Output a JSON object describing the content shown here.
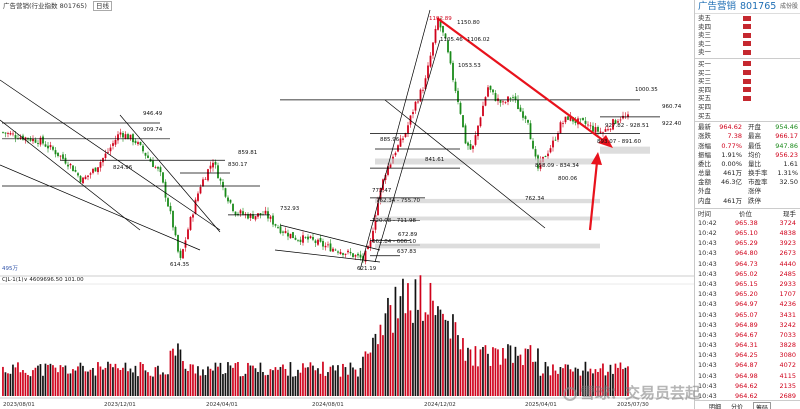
{
  "topbar": {
    "name": "广告营销(行业指数 801765)",
    "period": "日线"
  },
  "chart_labels": {
    "p1192": "1192.89",
    "p1150": "1150.80",
    "p1105": "1105.46",
    "p1106": "1106.02",
    "p1053": "1053.53",
    "p1000": "1000.35",
    "p960": "960.74",
    "p946": "946.49",
    "p922": "922.40",
    "p927": "927.82 - 928.51",
    "p909": "909.74",
    "p893": "893.07 - 891.60",
    "p885": "885.96",
    "p859": "859.81",
    "p858": "858.09 - 834.34",
    "p841": "841.61",
    "p830": "830.17",
    "p824": "824.96",
    "p800": "800.06",
    "p772": "772.47",
    "p762a": "762.34 - 755.70",
    "p762b": "762.34",
    "p732": "732.93",
    "p720": "720.08 - 711.98",
    "p672": "672.89",
    "p662": "662.84 - 666.10",
    "p637": "637.83",
    "p621": "621.19",
    "p614": "614.35"
  },
  "vol_header": "495万",
  "vol_label": "CJL·1(1)∨ 4609696.50  101.00",
  "dates": [
    "2023/08/01",
    "2023/12/01",
    "2024/04/01",
    "2024/08/01",
    "2024/12/02",
    "2025/04/01",
    "2025/07/30"
  ],
  "panel": {
    "title": "广告营销",
    "code": "801765",
    "more": "成份股",
    "asks": [
      "卖五",
      "卖四",
      "卖三",
      "卖二",
      "卖一"
    ],
    "bids": [
      "买一",
      "买二",
      "买三",
      "买四",
      "买五"
    ],
    "extra": [
      "买四",
      "买五"
    ],
    "stats": [
      {
        "l1": "最新",
        "v1": "964.62",
        "l2": "开盘",
        "v2": "954.46",
        "c1": "red",
        "c2": "green"
      },
      {
        "l1": "涨跌",
        "v1": "7.38",
        "l2": "最高",
        "v2": "966.17",
        "c1": "red",
        "c2": "red"
      },
      {
        "l1": "涨幅",
        "v1": "0.77%",
        "l2": "最低",
        "v2": "947.86",
        "c1": "red",
        "c2": "green"
      },
      {
        "l1": "振幅",
        "v1": "1.91%",
        "l2": "均价",
        "v2": "956.23",
        "c1": "dark",
        "c2": "red"
      },
      {
        "l1": "委比",
        "v1": "0.00%",
        "l2": "量比",
        "v2": "1.61",
        "c1": "dark",
        "c2": "dark"
      },
      {
        "l1": "总量",
        "v1": "461万",
        "l2": "换手率",
        "v2": "1.31%",
        "c1": "dark",
        "c2": "dark"
      },
      {
        "l1": "金额",
        "v1": "46.3亿",
        "l2": "市盈率",
        "v2": "32.50",
        "c1": "dark",
        "c2": "dark"
      },
      {
        "l1": "外盘",
        "v1": "",
        "l2": "涨停",
        "v2": "",
        "c1": "dark",
        "c2": "dark"
      },
      {
        "l1": "内盘",
        "v1": "461万",
        "l2": "跌停",
        "v2": "",
        "c1": "dark",
        "c2": "dark"
      }
    ],
    "tick_headers": [
      "时间",
      "价位",
      "现手"
    ],
    "ticks": [
      {
        "t": "10:42",
        "p": "965.38",
        "v": "3724"
      },
      {
        "t": "10:42",
        "p": "965.10",
        "v": "4838"
      },
      {
        "t": "10:43",
        "p": "965.29",
        "v": "3923"
      },
      {
        "t": "10:43",
        "p": "964.80",
        "v": "2673"
      },
      {
        "t": "10:43",
        "p": "964.73",
        "v": "4440"
      },
      {
        "t": "10:43",
        "p": "965.02",
        "v": "2485"
      },
      {
        "t": "10:43",
        "p": "965.15",
        "v": "2933"
      },
      {
        "t": "10:43",
        "p": "965.20",
        "v": "1707"
      },
      {
        "t": "10:43",
        "p": "964.97",
        "v": "4236"
      },
      {
        "t": "10:43",
        "p": "965.07",
        "v": "3431"
      },
      {
        "t": "10:43",
        "p": "964.89",
        "v": "3242"
      },
      {
        "t": "10:43",
        "p": "964.67",
        "v": "7033"
      },
      {
        "t": "10:43",
        "p": "964.31",
        "v": "3828"
      },
      {
        "t": "10:43",
        "p": "964.25",
        "v": "3080"
      },
      {
        "t": "10:43",
        "p": "964.87",
        "v": "4072"
      },
      {
        "t": "10:43",
        "p": "964.98",
        "v": "4115"
      },
      {
        "t": "10:43",
        "p": "964.62",
        "v": "2135"
      },
      {
        "t": "10:43",
        "p": "964.62",
        "v": "2689"
      }
    ],
    "tabs": [
      "明细",
      "分价",
      "筹码"
    ]
  },
  "watermark": "雪球：交易员芸起",
  "colors": {
    "up": "#d0021b",
    "down": "#1a8a1a",
    "arrow": "#e8121c",
    "line": "#000000"
  }
}
